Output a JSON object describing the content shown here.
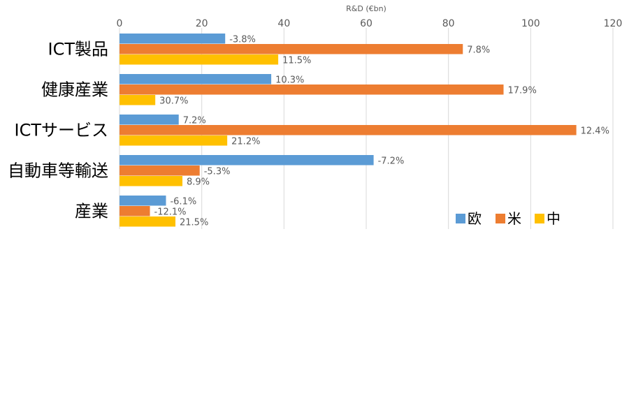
{
  "chart_data": {
    "type": "bar",
    "orientation": "horizontal",
    "xlabel": "R&D (€bn)",
    "xlim": [
      0,
      120
    ],
    "xticks": [
      0,
      20,
      40,
      60,
      80,
      100,
      120
    ],
    "grid": "vertical",
    "legend_position": "bottom-right",
    "categories": [
      "ICT製品",
      "健康産業",
      "ICTサービス",
      "自動車等輸送",
      "産業"
    ],
    "series": [
      {
        "name": "欧",
        "color": "#5b9bd5",
        "values": [
          25.7,
          36.9,
          14.4,
          61.8,
          11.3
        ],
        "labels": [
          "-3.8%",
          "10.3%",
          "7.2%",
          "-7.2%",
          "-6.1%"
        ]
      },
      {
        "name": "米",
        "color": "#ed7d31",
        "values": [
          83.5,
          93.4,
          111.1,
          19.5,
          7.4
        ],
        "labels": [
          "7.8%",
          "17.9%",
          "12.4%",
          "-5.3%",
          "-12.1%"
        ]
      },
      {
        "name": "中",
        "color": "#ffc000",
        "values": [
          38.6,
          8.7,
          26.2,
          15.3,
          13.6
        ],
        "labels": [
          "11.5%",
          "30.7%",
          "21.2%",
          "8.9%",
          "21.5%"
        ]
      }
    ]
  }
}
